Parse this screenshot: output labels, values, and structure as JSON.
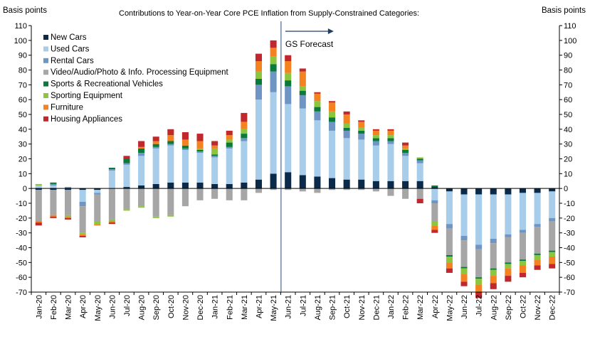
{
  "chart_data": {
    "type": "bar",
    "stacked": true,
    "title": "Contributions to Year-on-Year Core PCE Inflation from Supply-Constrained Categories:",
    "ylabel_left": "Basis points",
    "ylabel_right": "Basis points",
    "ylim": [
      -70,
      110
    ],
    "yticks": [
      -70,
      -60,
      -50,
      -40,
      -30,
      -20,
      -10,
      0,
      10,
      20,
      30,
      40,
      50,
      60,
      70,
      80,
      90,
      100,
      110
    ],
    "grid": false,
    "legend_position": "top-left",
    "annotation": {
      "text": "GS Forecast",
      "divider_after": "May-21"
    },
    "categories": [
      "Jan-20",
      "Feb-20",
      "Mar-20",
      "Apr-20",
      "May-20",
      "Jun-20",
      "Jul-20",
      "Aug-20",
      "Sep-20",
      "Oct-20",
      "Nov-20",
      "Dec-20",
      "Jan-21",
      "Feb-21",
      "Mar-21",
      "Apr-21",
      "May-21",
      "Jun-21",
      "Jul-21",
      "Aug-21",
      "Sep-21",
      "Oct-21",
      "Nov-21",
      "Dec-21",
      "Jan-22",
      "Feb-22",
      "Mar-22",
      "Apr-22",
      "May-22",
      "Jun-22",
      "Jul-22",
      "Aug-22",
      "Sep-22",
      "Oct-22",
      "Nov-22",
      "Dec-22"
    ],
    "series": [
      {
        "name": "New Cars",
        "color": "#0b2a4a",
        "values": [
          -1,
          -1,
          -1,
          -1,
          -1,
          0,
          1,
          2,
          3,
          4,
          4,
          4,
          3,
          3,
          4,
          6,
          10,
          11,
          9,
          8,
          7,
          6,
          6,
          5,
          5,
          5,
          5,
          1,
          -2,
          -4,
          -4,
          -4,
          -4,
          -3,
          -3,
          -2
        ]
      },
      {
        "name": "Used Cars",
        "color": "#a8cdea",
        "values": [
          2,
          2,
          0,
          -8,
          -2,
          12,
          15,
          20,
          24,
          25,
          22,
          20,
          18,
          24,
          28,
          54,
          55,
          46,
          45,
          38,
          32,
          28,
          27,
          24,
          25,
          17,
          12,
          -8,
          -22,
          -28,
          -34,
          -30,
          -27,
          -25,
          -21,
          -18
        ]
      },
      {
        "name": "Rental Cars",
        "color": "#6e95c4",
        "values": [
          0,
          1,
          1,
          -3,
          -1,
          1,
          1,
          2,
          1,
          1,
          1,
          1,
          1,
          1,
          2,
          10,
          14,
          12,
          9,
          6,
          6,
          5,
          4,
          3,
          2,
          2,
          2,
          -2,
          -3,
          -3,
          -3,
          -3,
          -2,
          -2,
          -2,
          -2
        ]
      },
      {
        "name": "Video/Audio/Photo & Info. Processing Equipment",
        "color": "#a6a6a6",
        "values": [
          -21,
          -17,
          -17,
          -18,
          -18,
          -21,
          -14,
          -12,
          -19,
          -18,
          -12,
          -8,
          -7,
          -8,
          -8,
          -3,
          -1,
          -1,
          -2,
          -3,
          -1,
          -1,
          -1,
          -2,
          -5,
          -7,
          -7,
          -12,
          -18,
          -18,
          -19,
          -17,
          -17,
          -18,
          -18,
          -20
        ]
      },
      {
        "name": "Sports & Recreational Vehicles",
        "color": "#0a7a3a",
        "values": [
          0,
          1,
          0,
          0,
          0,
          1,
          3,
          3,
          2,
          2,
          2,
          1,
          1,
          3,
          3,
          4,
          5,
          4,
          3,
          3,
          3,
          2,
          2,
          2,
          2,
          2,
          1,
          1,
          -1,
          -1,
          -1,
          -1,
          -1,
          -1,
          -1,
          -1
        ]
      },
      {
        "name": "Sporting Equipment",
        "color": "#8cc63f",
        "values": [
          1,
          0,
          -1,
          -1,
          -2,
          -1,
          -1,
          -1,
          -1,
          -1,
          0,
          1,
          4,
          2,
          3,
          5,
          5,
          5,
          3,
          4,
          4,
          3,
          2,
          2,
          2,
          1,
          1,
          -3,
          -4,
          -4,
          -4,
          -4,
          -3,
          -3,
          -3,
          -3
        ]
      },
      {
        "name": "Furniture",
        "color": "#f58220",
        "values": [
          -1,
          -1,
          -1,
          -1,
          -1,
          -1,
          0,
          1,
          2,
          4,
          4,
          5,
          2,
          3,
          5,
          7,
          6,
          8,
          10,
          5,
          6,
          6,
          4,
          3,
          3,
          2,
          0,
          -3,
          -4,
          -5,
          -5,
          -5,
          -5,
          -5,
          -4,
          -5
        ]
      },
      {
        "name": "Housing Appliances",
        "color": "#c0282e",
        "values": [
          -2,
          -1,
          -1,
          -1,
          0,
          -1,
          2,
          4,
          3,
          4,
          5,
          5,
          3,
          3,
          6,
          5,
          5,
          4,
          2,
          1,
          1,
          2,
          1,
          1,
          1,
          2,
          -3,
          -2,
          -3,
          -3,
          -4,
          -4,
          -4,
          -3,
          -3,
          -3
        ]
      }
    ]
  }
}
